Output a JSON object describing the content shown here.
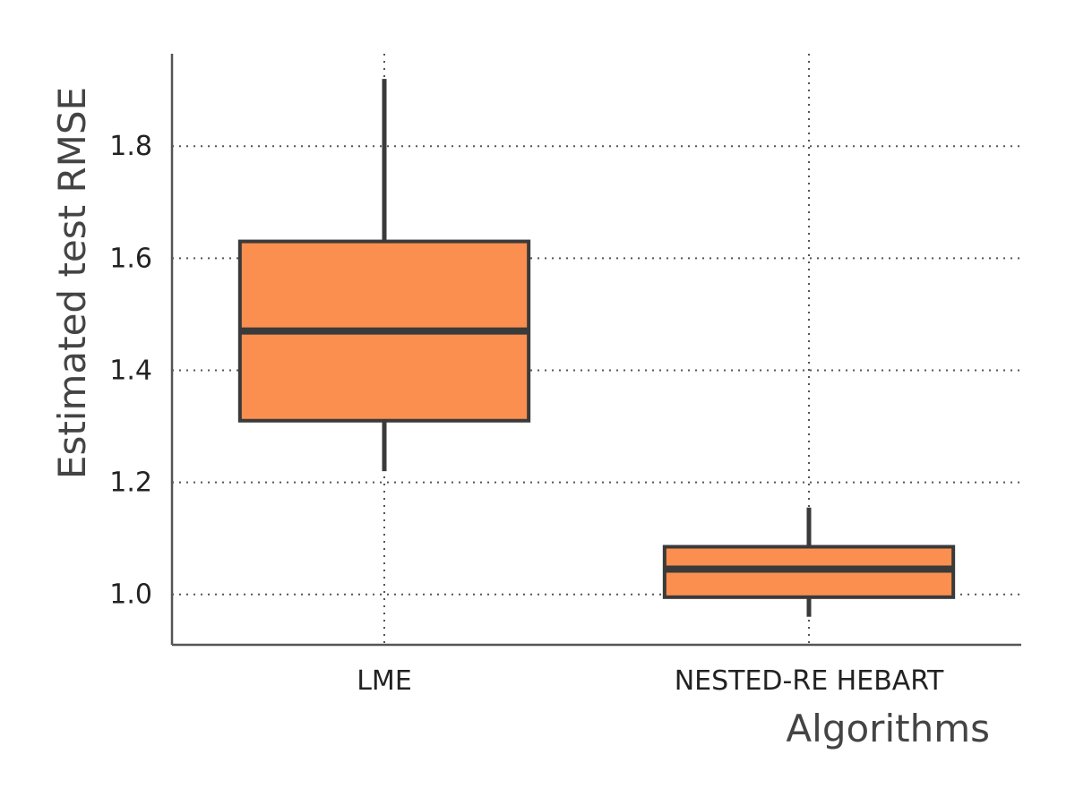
{
  "chart_data": {
    "type": "box",
    "title": "",
    "xlabel": "Algorithms",
    "ylabel": "Estimated test RMSE",
    "ylim": [
      0.91,
      1.965
    ],
    "y_ticks": [
      1.0,
      1.2,
      1.4,
      1.6,
      1.8
    ],
    "y_tick_labels": [
      "1.0",
      "1.2",
      "1.4",
      "1.6",
      "1.8"
    ],
    "grid": true,
    "categories": [
      "LME",
      "NESTED-RE HEBART"
    ],
    "boxes": [
      {
        "category": "LME",
        "whisker_low": 1.22,
        "q1": 1.31,
        "median": 1.47,
        "q3": 1.63,
        "whisker_high": 1.92
      },
      {
        "category": "NESTED-RE HEBART",
        "whisker_low": 0.96,
        "q1": 0.995,
        "median": 1.045,
        "q3": 1.085,
        "whisker_high": 1.155
      }
    ],
    "box_color": "#fa8f50",
    "line_color": "#3a3a3a",
    "axis_color": "#555555"
  }
}
